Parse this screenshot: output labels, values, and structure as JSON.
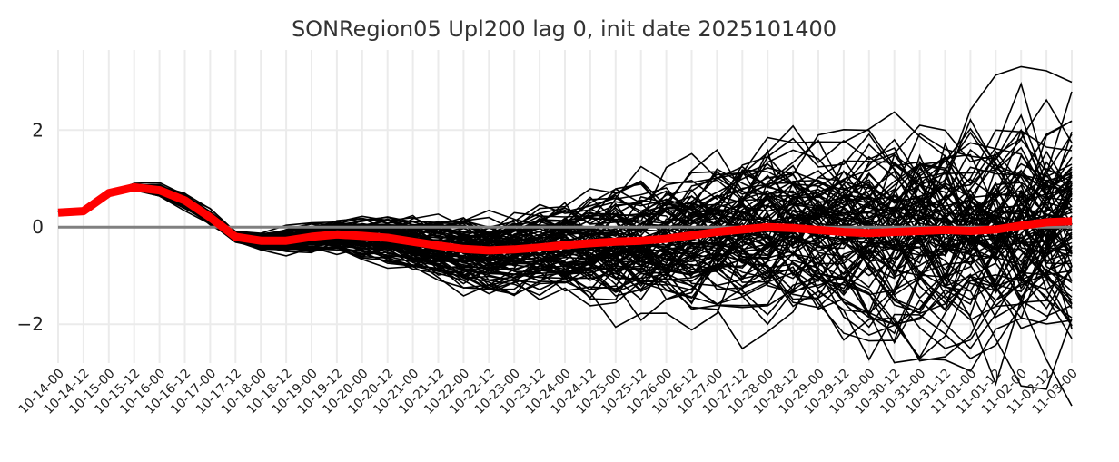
{
  "chart_data": {
    "type": "line",
    "title": "SONRegion05 Upl200 lag 0, init date 2025101400",
    "xlabel": "",
    "ylabel": "",
    "x": [
      "10-14-00",
      "10-14-12",
      "10-15-00",
      "10-15-12",
      "10-16-00",
      "10-16-12",
      "10-17-00",
      "10-17-12",
      "10-18-00",
      "10-18-12",
      "10-19-00",
      "10-19-12",
      "10-20-00",
      "10-20-12",
      "10-21-00",
      "10-21-12",
      "10-22-00",
      "10-22-12",
      "10-23-00",
      "10-23-12",
      "10-24-00",
      "10-24-12",
      "10-25-00",
      "10-25-12",
      "10-26-00",
      "10-26-12",
      "10-27-00",
      "10-27-12",
      "10-28-00",
      "10-28-12",
      "10-29-00",
      "10-29-12",
      "10-30-00",
      "10-30-12",
      "10-31-00",
      "10-31-12",
      "11-01-00",
      "11-01-12",
      "11-02-00",
      "11-02-12",
      "11-03-00"
    ],
    "ylim": [
      -2.8,
      3.65
    ],
    "yticks": [
      -2,
      0,
      2
    ],
    "ytick_labels": [
      "−2",
      "0",
      "2"
    ],
    "grid": true,
    "legend": "none",
    "zero_line": {
      "value": 0,
      "color": "#808080"
    },
    "ensemble": {
      "members": 100,
      "color": "#000000",
      "initial_values": [
        0.3,
        0.33,
        0.7,
        0.82,
        0.76,
        0.55,
        0.2,
        -0.2,
        -0.3,
        -0.28,
        -0.2,
        -0.15,
        -0.18
      ],
      "spread_envelope": [
        0,
        0,
        0,
        0.04,
        0.08,
        0.1,
        0.1,
        0.12,
        0.15,
        0.18,
        0.2,
        0.22,
        0.25,
        0.3,
        0.35,
        0.4,
        0.45,
        0.5,
        0.55,
        0.6,
        0.65,
        0.7,
        0.75,
        0.8,
        0.85,
        0.9,
        0.95,
        1.0,
        1.05,
        1.1,
        1.15,
        1.2,
        1.25,
        1.3,
        1.35,
        1.4,
        1.45,
        1.5,
        1.55,
        1.6,
        1.65
      ]
    },
    "series": [
      {
        "color": "#ff0000",
        "values": [
          0.3,
          0.33,
          0.7,
          0.82,
          0.76,
          0.55,
          0.2,
          -0.2,
          -0.28,
          -0.28,
          -0.2,
          -0.15,
          -0.18,
          -0.22,
          -0.3,
          -0.38,
          -0.45,
          -0.48,
          -0.46,
          -0.42,
          -0.37,
          -0.33,
          -0.3,
          -0.28,
          -0.24,
          -0.17,
          -0.1,
          -0.05,
          0.0,
          -0.02,
          -0.06,
          -0.1,
          -0.12,
          -0.1,
          -0.08,
          -0.06,
          -0.08,
          -0.05,
          0.03,
          0.1,
          0.12
        ]
      }
    ]
  }
}
